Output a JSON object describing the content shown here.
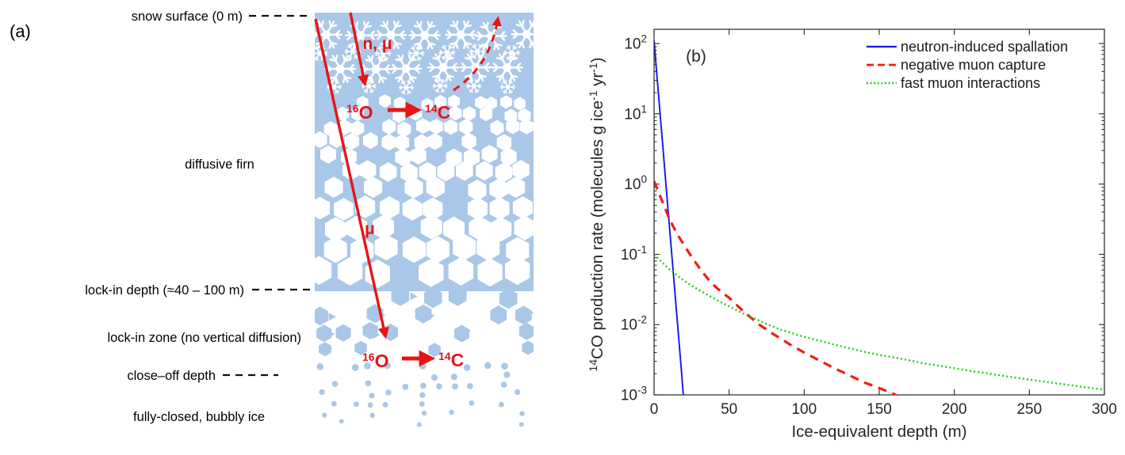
{
  "figure": {
    "panel_a_tag": "(a)",
    "panel_b_tag": "(b)"
  },
  "panel_a": {
    "labels": {
      "snow_surface": "snow surface (0 m)",
      "diffusive_firn": "diffusive firn",
      "lock_in_depth": "lock-in depth (≈40 – 100 m)",
      "lock_in_zone": "lock-in zone (no vertical diffusion)",
      "close_off_depth": "close–off depth",
      "bubbly_ice": "fully-closed, bubbly ice"
    },
    "annotations": {
      "n_mu": "n, μ",
      "mu": "μ",
      "o16": {
        "sup": "16",
        "base": "O"
      },
      "c14": {
        "sup": "14",
        "base": "C"
      }
    },
    "colors": {
      "ice_blue": "#a9c7e8",
      "red": "#e81414"
    }
  },
  "chart_data": {
    "type": "line",
    "panel_label": "(b)",
    "xlabel": "Ice-equivalent depth (m)",
    "ylabel": "14CO production rate (molecules g ice-1 yr-1)",
    "ylabel_parts": [
      {
        "text": "14",
        "sup": true
      },
      {
        "text": "CO production rate (molecules g ice",
        "sup": false
      },
      {
        "text": "-1",
        "sup": true
      },
      {
        "text": " yr",
        "sup": false
      },
      {
        "text": "-1",
        "sup": true
      },
      {
        "text": ")",
        "sup": false
      }
    ],
    "xlim": [
      0,
      300
    ],
    "ylim": [
      0.001,
      158
    ],
    "yscale": "log",
    "grid": false,
    "legend_position": "top-right",
    "xticks": [
      0,
      50,
      100,
      150,
      200,
      250,
      300
    ],
    "ytick_base": "10",
    "ytick_exponents": [
      2,
      1,
      0,
      -1,
      -2,
      -3
    ],
    "series": [
      {
        "name": "neutron-induced spallation",
        "color": "#1515ee",
        "style": "solid",
        "points": [
          [
            0,
            110
          ],
          [
            2,
            33
          ],
          [
            4,
            10
          ],
          [
            6,
            3.1
          ],
          [
            8,
            0.95
          ],
          [
            10,
            0.29
          ],
          [
            12,
            0.089
          ],
          [
            14,
            0.027
          ],
          [
            16,
            0.0083
          ],
          [
            18,
            0.0025
          ],
          [
            19.5,
            0.001
          ]
        ]
      },
      {
        "name": "negative muon capture",
        "color": "#f21d12",
        "style": "dashed",
        "points": [
          [
            0,
            1.1
          ],
          [
            5,
            0.6
          ],
          [
            10,
            0.33
          ],
          [
            15,
            0.2
          ],
          [
            20,
            0.135
          ],
          [
            25,
            0.092
          ],
          [
            30,
            0.065
          ],
          [
            35,
            0.047
          ],
          [
            40,
            0.036
          ],
          [
            45,
            0.029
          ],
          [
            50,
            0.024
          ],
          [
            55,
            0.019
          ],
          [
            60,
            0.0152
          ],
          [
            65,
            0.0123
          ],
          [
            70,
            0.01
          ],
          [
            75,
            0.0085
          ],
          [
            80,
            0.0072
          ],
          [
            85,
            0.0062
          ],
          [
            90,
            0.0053
          ],
          [
            95,
            0.0046
          ],
          [
            100,
            0.004
          ],
          [
            110,
            0.0031
          ],
          [
            120,
            0.0024
          ],
          [
            130,
            0.0019
          ],
          [
            140,
            0.0015
          ],
          [
            150,
            0.00125
          ],
          [
            160,
            0.00102
          ],
          [
            163,
            0.00095
          ]
        ]
      },
      {
        "name": "fast muon interactions",
        "color": "#1ecc10",
        "style": "dotted",
        "points": [
          [
            0,
            0.1
          ],
          [
            5,
            0.078
          ],
          [
            10,
            0.062
          ],
          [
            15,
            0.051
          ],
          [
            20,
            0.042
          ],
          [
            25,
            0.036
          ],
          [
            30,
            0.031
          ],
          [
            35,
            0.027
          ],
          [
            40,
            0.0235
          ],
          [
            45,
            0.0205
          ],
          [
            50,
            0.0182
          ],
          [
            55,
            0.016
          ],
          [
            60,
            0.0142
          ],
          [
            65,
            0.0127
          ],
          [
            70,
            0.0114
          ],
          [
            75,
            0.0102
          ],
          [
            80,
            0.0092
          ],
          [
            85,
            0.0084
          ],
          [
            90,
            0.0078
          ],
          [
            95,
            0.0072
          ],
          [
            100,
            0.0067
          ],
          [
            110,
            0.0059
          ],
          [
            120,
            0.0052
          ],
          [
            130,
            0.0046
          ],
          [
            140,
            0.0041
          ],
          [
            150,
            0.0037
          ],
          [
            160,
            0.0034
          ],
          [
            170,
            0.0031
          ],
          [
            180,
            0.0028
          ],
          [
            190,
            0.0026
          ],
          [
            200,
            0.0024
          ],
          [
            210,
            0.0022
          ],
          [
            220,
            0.00205
          ],
          [
            230,
            0.0019
          ],
          [
            240,
            0.00177
          ],
          [
            250,
            0.00165
          ],
          [
            260,
            0.00154
          ],
          [
            270,
            0.00144
          ],
          [
            280,
            0.00135
          ],
          [
            290,
            0.00126
          ],
          [
            300,
            0.00118
          ]
        ]
      }
    ]
  }
}
